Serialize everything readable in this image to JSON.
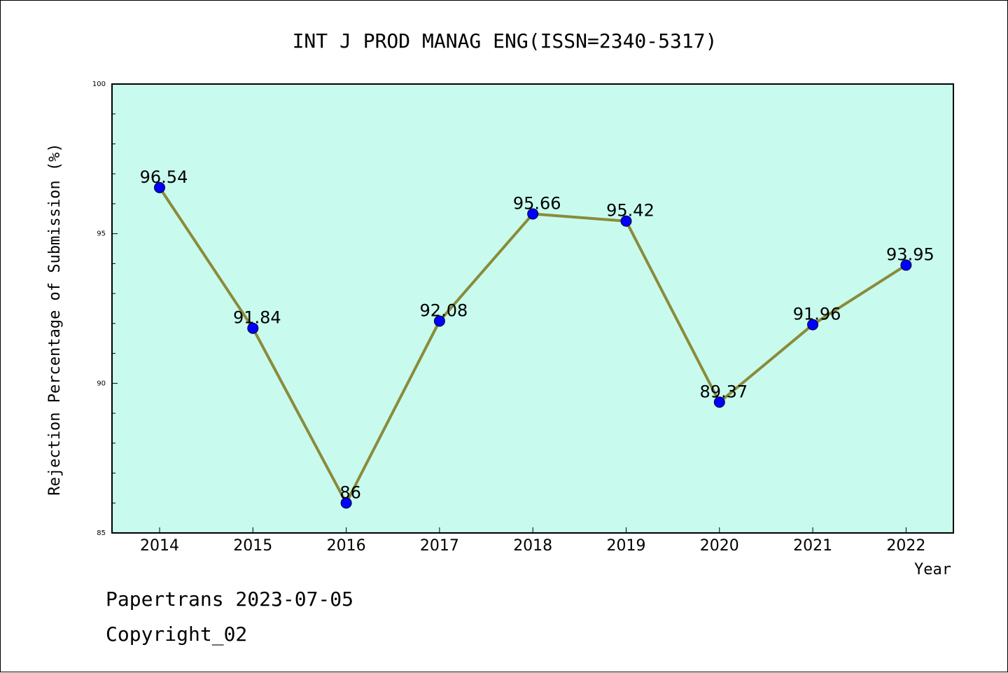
{
  "chart_data": {
    "type": "line",
    "title": "INT J PROD MANAG ENG(ISSN=2340-5317)",
    "xlabel": "Year",
    "ylabel": "Rejection Percentage of Submission (%)",
    "x": [
      "2014",
      "2015",
      "2016",
      "2017",
      "2018",
      "2019",
      "2020",
      "2021",
      "2022"
    ],
    "series": [
      {
        "values": [
          96.54,
          91.84,
          86,
          92.08,
          95.66,
          95.42,
          89.37,
          91.96,
          93.95
        ],
        "labels": [
          "96.54",
          "91.84",
          "86",
          "92.08",
          "95.66",
          "95.42",
          "89.37",
          "91.96",
          "93.95"
        ]
      }
    ],
    "ylim": [
      85,
      100
    ],
    "yticks": [
      "85",
      "90",
      "95",
      "100"
    ],
    "grid": false,
    "colors": {
      "plot_background": "#c8fbee",
      "line": "#8b8b3a",
      "marker": "#0000ff"
    }
  },
  "footer": {
    "source": "Papertrans 2023-07-05",
    "copyright": "Copyright_02"
  }
}
